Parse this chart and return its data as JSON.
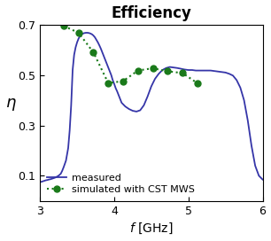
{
  "title": "Efficiency",
  "xlabel": "$f$ [GHz]",
  "ylabel": "$\\eta$",
  "xlim": [
    3,
    6
  ],
  "ylim": [
    0,
    0.7
  ],
  "yticks": [
    0.1,
    0.3,
    0.5,
    0.7
  ],
  "xticks": [
    3,
    4,
    5,
    6
  ],
  "measured_color": "#3535a8",
  "simulated_color": "#1a7a1a",
  "measured_x": [
    3.0,
    3.02,
    3.04,
    3.06,
    3.08,
    3.1,
    3.12,
    3.14,
    3.16,
    3.18,
    3.2,
    3.22,
    3.25,
    3.28,
    3.3,
    3.32,
    3.35,
    3.38,
    3.4,
    3.42,
    3.44,
    3.46,
    3.48,
    3.5,
    3.52,
    3.54,
    3.56,
    3.58,
    3.6,
    3.62,
    3.64,
    3.66,
    3.68,
    3.7,
    3.72,
    3.74,
    3.76,
    3.78,
    3.8,
    3.82,
    3.84,
    3.86,
    3.88,
    3.9,
    3.92,
    3.94,
    3.96,
    3.98,
    4.0,
    4.02,
    4.04,
    4.06,
    4.08,
    4.1,
    4.15,
    4.2,
    4.25,
    4.3,
    4.35,
    4.4,
    4.45,
    4.5,
    4.55,
    4.6,
    4.65,
    4.7,
    4.75,
    4.8,
    4.85,
    4.9,
    4.95,
    5.0,
    5.05,
    5.1,
    5.15,
    5.2,
    5.25,
    5.3,
    5.35,
    5.4,
    5.45,
    5.5,
    5.55,
    5.6,
    5.65,
    5.7,
    5.75,
    5.8,
    5.85,
    5.9,
    5.95,
    6.0
  ],
  "measured_y": [
    0.075,
    0.076,
    0.078,
    0.08,
    0.082,
    0.083,
    0.085,
    0.086,
    0.088,
    0.09,
    0.092,
    0.095,
    0.1,
    0.108,
    0.12,
    0.135,
    0.16,
    0.21,
    0.28,
    0.38,
    0.52,
    0.58,
    0.61,
    0.63,
    0.645,
    0.655,
    0.66,
    0.665,
    0.667,
    0.668,
    0.668,
    0.667,
    0.665,
    0.662,
    0.657,
    0.65,
    0.64,
    0.63,
    0.618,
    0.605,
    0.59,
    0.575,
    0.56,
    0.545,
    0.53,
    0.515,
    0.5,
    0.48,
    0.465,
    0.448,
    0.435,
    0.42,
    0.405,
    0.39,
    0.375,
    0.365,
    0.358,
    0.355,
    0.36,
    0.38,
    0.415,
    0.455,
    0.485,
    0.505,
    0.52,
    0.528,
    0.532,
    0.53,
    0.528,
    0.525,
    0.522,
    0.52,
    0.52,
    0.518,
    0.518,
    0.518,
    0.518,
    0.518,
    0.516,
    0.514,
    0.512,
    0.51,
    0.505,
    0.498,
    0.48,
    0.45,
    0.4,
    0.32,
    0.22,
    0.14,
    0.1,
    0.085
  ],
  "simulated_x": [
    3.32,
    3.52,
    3.72,
    3.92,
    4.12,
    4.32,
    4.52,
    4.72,
    4.92,
    5.12
  ],
  "simulated_y": [
    0.695,
    0.668,
    0.59,
    0.468,
    0.476,
    0.518,
    0.527,
    0.515,
    0.508,
    0.468
  ],
  "legend_measured": "measured",
  "legend_simulated": "simulated with CST MWS",
  "figsize": [
    3.06,
    2.72
  ],
  "dpi": 100,
  "title_fontsize": 12,
  "label_fontsize": 10,
  "ylabel_fontsize": 13,
  "tick_fontsize": 9,
  "legend_fontsize": 8,
  "line_width": 1.3,
  "sim_linewidth": 1.5,
  "marker_size": 5
}
